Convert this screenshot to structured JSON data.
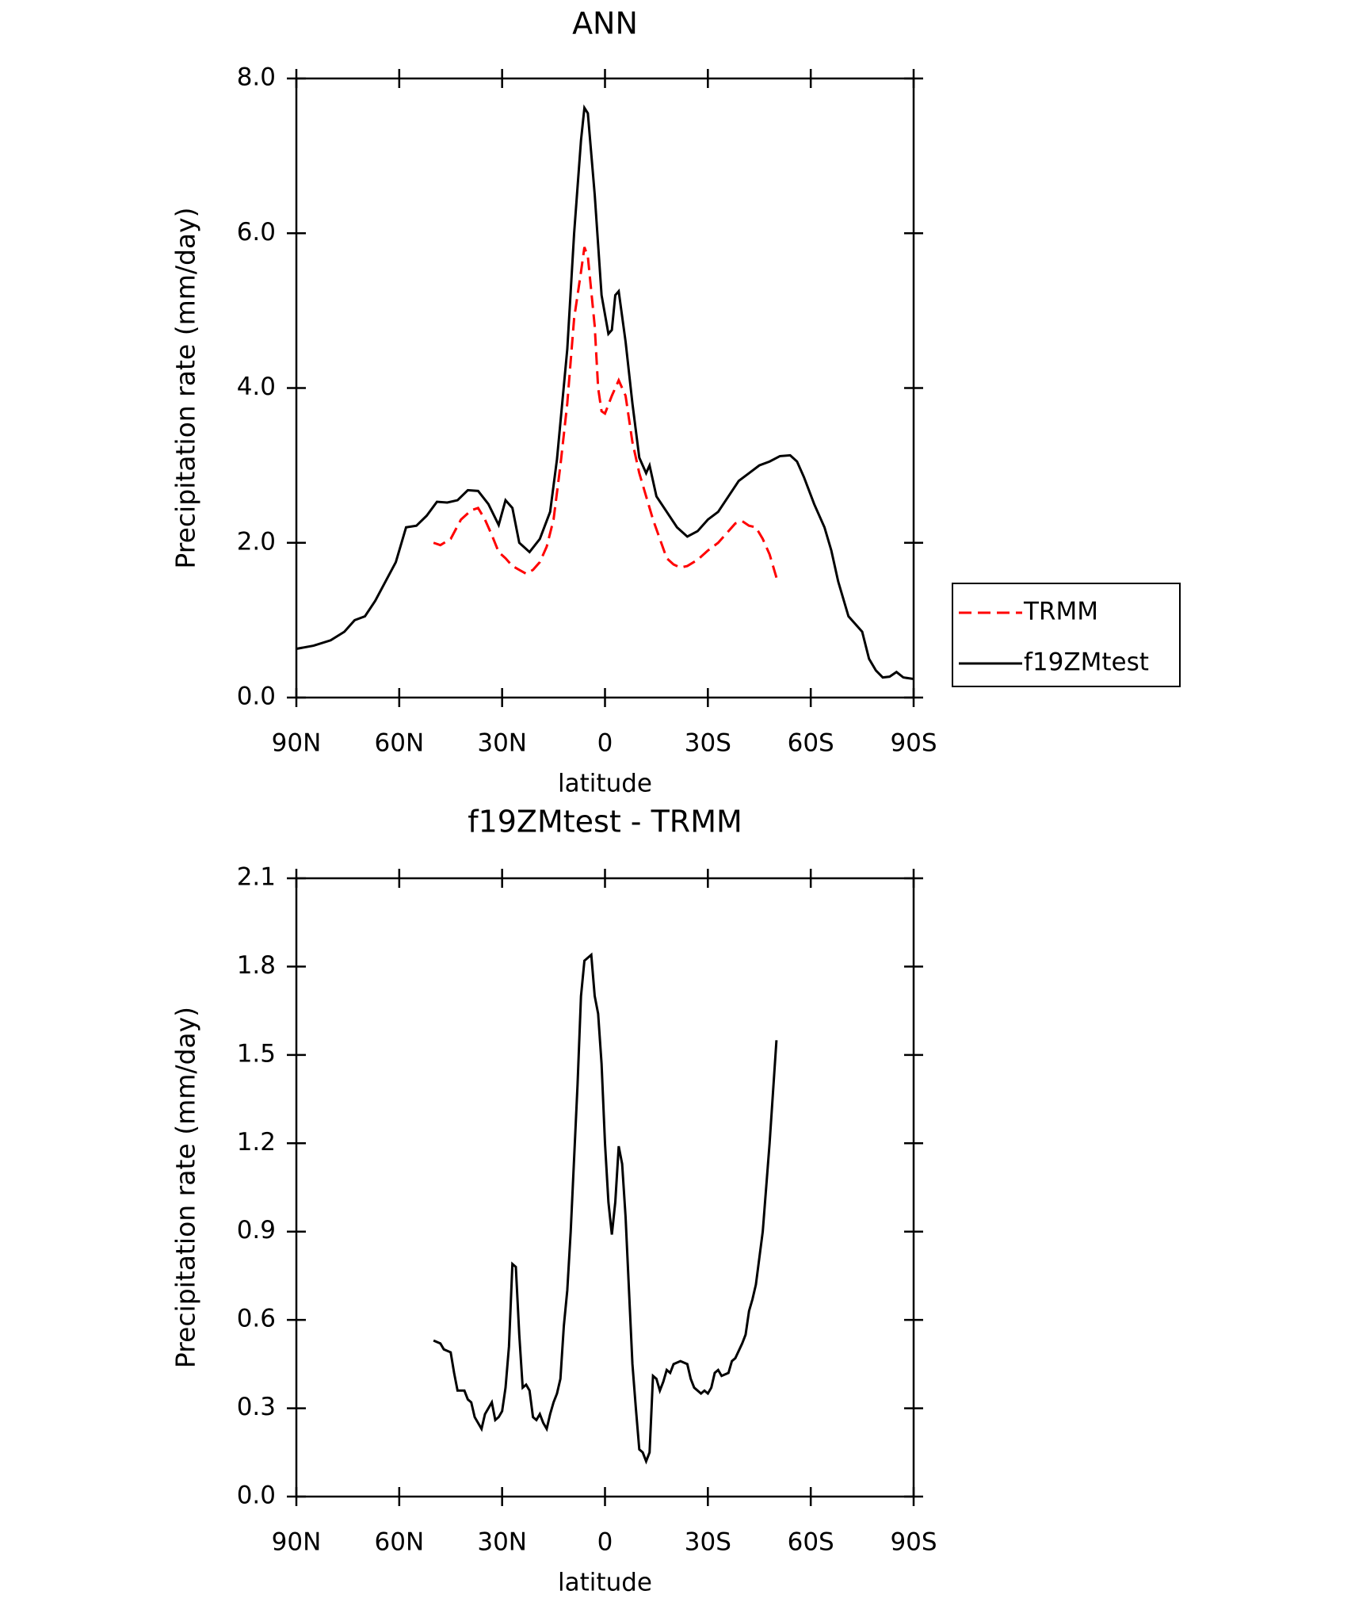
{
  "chart_data": [
    {
      "type": "line",
      "title": "ANN",
      "x_label": "latitude",
      "y_label": "Precipitation rate (mm/day)",
      "xlim": [
        90,
        -90
      ],
      "xticks": [
        {
          "value": 90,
          "label": "90N"
        },
        {
          "value": 60,
          "label": "60N"
        },
        {
          "value": 30,
          "label": "30N"
        },
        0,
        {
          "value": -30,
          "label": "30S"
        },
        {
          "value": -60,
          "label": "60S"
        },
        {
          "value": -90,
          "label": "90S"
        }
      ],
      "ylim": [
        0,
        8
      ],
      "yticks": [
        {
          "value": 0,
          "label": "0.0"
        },
        {
          "value": 2,
          "label": "2.0"
        },
        {
          "value": 4,
          "label": "4.0"
        },
        {
          "value": 6,
          "label": "6.0"
        },
        {
          "value": 8,
          "label": "8.0"
        }
      ],
      "legend": "right",
      "series": [
        {
          "name": "TRMM",
          "color": "#ff0000",
          "dash": "dashed",
          "x": [
            50,
            48,
            45,
            42,
            39,
            37,
            35,
            33,
            31,
            29,
            27,
            25,
            23,
            21,
            19,
            17,
            15,
            13,
            11,
            9,
            7,
            6,
            5,
            3,
            2,
            1,
            0,
            -2,
            -4,
            -6,
            -8,
            -10,
            -12,
            -14,
            -16,
            -18,
            -20,
            -22,
            -24,
            -27,
            -30,
            -33,
            -36,
            -38,
            -40,
            -42,
            -44,
            -46,
            -48,
            -50
          ],
          "values": [
            2.0,
            1.97,
            2.05,
            2.3,
            2.42,
            2.45,
            2.3,
            2.1,
            1.88,
            1.8,
            1.7,
            1.65,
            1.6,
            1.65,
            1.75,
            1.95,
            2.3,
            3.0,
            3.8,
            4.9,
            5.5,
            5.82,
            5.7,
            4.8,
            4.0,
            3.7,
            3.67,
            3.9,
            4.1,
            3.9,
            3.3,
            2.9,
            2.6,
            2.3,
            2.05,
            1.8,
            1.72,
            1.68,
            1.7,
            1.78,
            1.9,
            2.0,
            2.15,
            2.25,
            2.28,
            2.22,
            2.2,
            2.05,
            1.85,
            1.55
          ]
        },
        {
          "name": "f19ZMtest",
          "color": "#000000",
          "dash": "solid",
          "x": [
            90,
            85,
            80,
            76,
            73,
            70,
            67,
            64,
            61,
            58,
            55,
            52,
            49,
            46,
            43,
            40,
            37,
            34,
            31,
            29,
            27,
            25,
            22,
            19,
            16,
            14,
            11,
            9,
            7,
            6,
            5,
            3,
            1,
            -1,
            -2,
            -3,
            -4,
            -6,
            -8,
            -10,
            -12,
            -13,
            -15,
            -18,
            -21,
            -24,
            -27,
            -30,
            -33,
            -36,
            -39,
            -42,
            -45,
            -48,
            -51,
            -54,
            -56,
            -58,
            -61,
            -64,
            -66,
            -68,
            -71,
            -73,
            -75,
            -77,
            -79,
            -81,
            -83,
            -85,
            -87,
            -90
          ],
          "values": [
            0.63,
            0.67,
            0.74,
            0.85,
            1.0,
            1.05,
            1.25,
            1.5,
            1.75,
            2.2,
            2.22,
            2.35,
            2.53,
            2.52,
            2.55,
            2.68,
            2.67,
            2.5,
            2.23,
            2.55,
            2.45,
            2.0,
            1.88,
            2.05,
            2.4,
            3.08,
            4.5,
            6.0,
            7.2,
            7.62,
            7.55,
            6.5,
            5.2,
            4.7,
            4.75,
            5.2,
            5.25,
            4.6,
            3.8,
            3.1,
            2.9,
            3.0,
            2.6,
            2.4,
            2.2,
            2.08,
            2.15,
            2.3,
            2.4,
            2.6,
            2.8,
            2.9,
            3.0,
            3.05,
            3.12,
            3.13,
            3.05,
            2.85,
            2.5,
            2.2,
            1.9,
            1.5,
            1.05,
            0.95,
            0.85,
            0.5,
            0.35,
            0.26,
            0.27,
            0.33,
            0.26,
            0.24
          ]
        }
      ]
    },
    {
      "type": "line",
      "title": "f19ZMtest - TRMM",
      "x_label": "latitude",
      "y_label": "Precipitation rate (mm/day)",
      "xlim": [
        90,
        -90
      ],
      "xticks": [
        {
          "value": 90,
          "label": "90N"
        },
        {
          "value": 60,
          "label": "60N"
        },
        {
          "value": 30,
          "label": "30N"
        },
        0,
        {
          "value": -30,
          "label": "30S"
        },
        {
          "value": -60,
          "label": "60S"
        },
        {
          "value": -90,
          "label": "90S"
        }
      ],
      "ylim": [
        0,
        2.1
      ],
      "yticks": [
        {
          "value": 0,
          "label": "0.0"
        },
        0.3,
        0.6,
        0.9,
        1.2,
        1.5,
        1.8,
        2.1
      ],
      "series": [
        {
          "color": "#000000",
          "dash": "solid",
          "x": [
            50,
            48,
            47,
            45,
            44,
            43,
            41,
            40,
            39,
            38,
            36,
            35,
            33,
            32,
            31,
            30,
            29,
            28,
            27,
            26,
            25,
            24,
            23,
            22,
            21,
            20,
            19,
            18,
            17,
            16,
            15,
            14,
            13,
            12,
            11,
            10,
            9,
            8,
            7,
            6,
            5,
            4,
            3,
            2,
            1,
            0,
            -1,
            -2,
            -3,
            -4,
            -5,
            -6,
            -7,
            -8,
            -9,
            -10,
            -11,
            -12,
            -13,
            -14,
            -15,
            -16,
            -17,
            -18,
            -19,
            -20,
            -22,
            -24,
            -25,
            -26,
            -28,
            -29,
            -30,
            -31,
            -32,
            -33,
            -34,
            -36,
            -37,
            -38,
            -40,
            -41,
            -42,
            -43,
            -44,
            -46,
            -48,
            -50
          ],
          "values": [
            0.53,
            0.52,
            0.5,
            0.49,
            0.42,
            0.36,
            0.36,
            0.33,
            0.32,
            0.27,
            0.23,
            0.28,
            0.32,
            0.26,
            0.27,
            0.29,
            0.37,
            0.51,
            0.79,
            0.78,
            0.55,
            0.37,
            0.38,
            0.36,
            0.27,
            0.26,
            0.28,
            0.25,
            0.23,
            0.28,
            0.32,
            0.35,
            0.4,
            0.58,
            0.7,
            0.9,
            1.15,
            1.4,
            1.7,
            1.82,
            1.83,
            1.84,
            1.7,
            1.64,
            1.47,
            1.2,
            1.0,
            0.89,
            1.0,
            1.19,
            1.13,
            0.95,
            0.7,
            0.45,
            0.3,
            0.16,
            0.15,
            0.12,
            0.15,
            0.41,
            0.4,
            0.36,
            0.39,
            0.43,
            0.42,
            0.45,
            0.46,
            0.45,
            0.4,
            0.37,
            0.35,
            0.36,
            0.35,
            0.37,
            0.42,
            0.43,
            0.41,
            0.42,
            0.46,
            0.47,
            0.52,
            0.55,
            0.63,
            0.67,
            0.72,
            0.9,
            1.2,
            1.55
          ]
        }
      ]
    }
  ]
}
